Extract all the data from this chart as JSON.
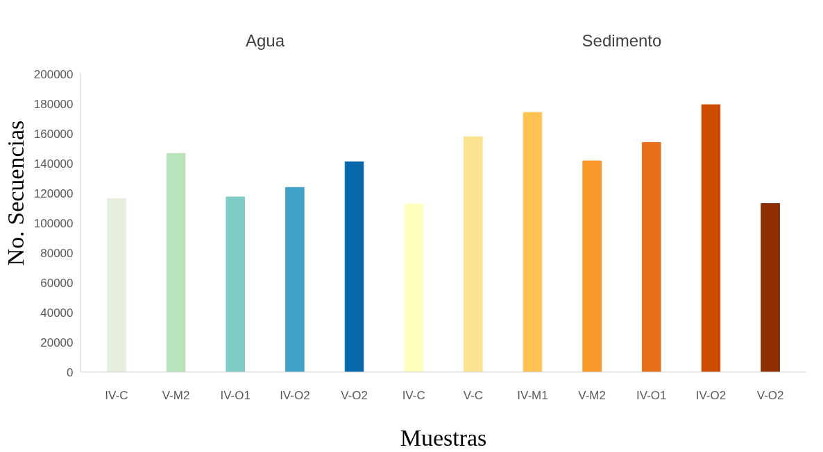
{
  "chart_data": {
    "type": "bar",
    "xlabel": "Muestras",
    "ylabel": "No. Secuencias",
    "categories": [
      "IV-C",
      "V-M2",
      "IV-O1",
      "IV-O2",
      "V-O2",
      "IV-C",
      "V-C",
      "IV-M1",
      "V-M2",
      "IV-O1",
      "IV-O2",
      "V-O2"
    ],
    "values": [
      116300,
      146600,
      117400,
      123800,
      141000,
      112700,
      157800,
      174100,
      141600,
      154000,
      179300,
      113000
    ],
    "colors": [
      "#e5efdc",
      "#b9e3bb",
      "#7fccc4",
      "#43a2ca",
      "#0868ac",
      "#ffffbe",
      "#fde290",
      "#fec350",
      "#fb982a",
      "#e8701a",
      "#cc4c02",
      "#8c2d04"
    ],
    "ylim": [
      0,
      200000
    ],
    "yticks": [
      0,
      20000,
      40000,
      60000,
      80000,
      100000,
      120000,
      140000,
      160000,
      180000,
      200000
    ],
    "grid": false,
    "annotations": [
      "Agua",
      "Sedimento"
    ]
  }
}
